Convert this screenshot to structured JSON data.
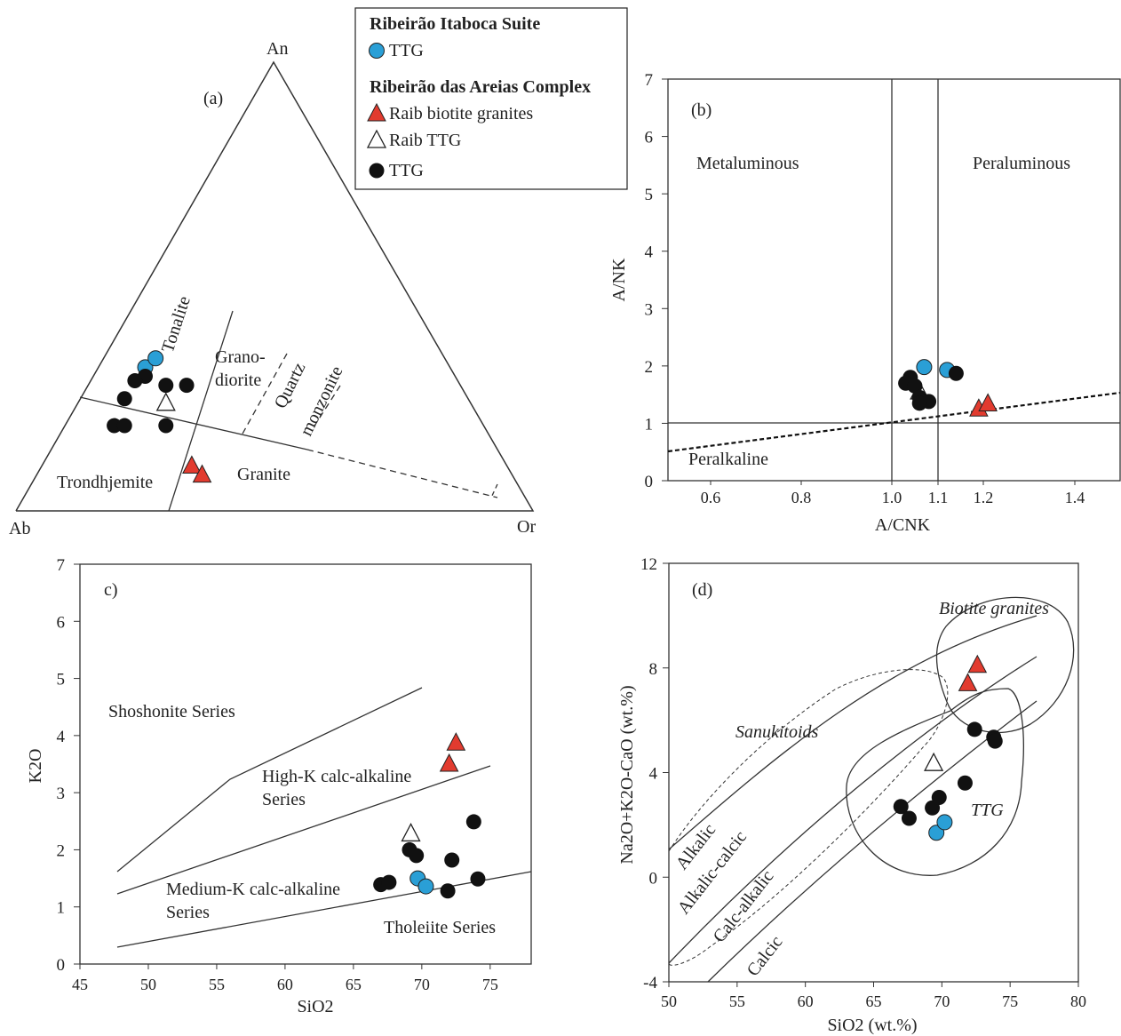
{
  "legend": {
    "group1_title": "Ribeirão Itaboca Suite",
    "group2_title": "Ribeirão das Areias Complex",
    "items": [
      {
        "label": "TTG",
        "marker": "circle",
        "color": "#2a9fd6"
      },
      {
        "label": "Raib biotite granites",
        "marker": "triangle",
        "color": "#e23b2f"
      },
      {
        "label": "Raib TTG",
        "marker": "triangle-open",
        "color": "#ffffff"
      },
      {
        "label": "TTG",
        "marker": "circle",
        "color": "#111111"
      }
    ]
  },
  "colors": {
    "blue": "#2a9fd6",
    "red": "#e23b2f",
    "black": "#111111",
    "line": "#333333"
  },
  "chart_data": [
    {
      "type": "scatter",
      "panel": "(a)",
      "title": "(a)",
      "vertices": {
        "top": "An",
        "left": "Ab",
        "right": "Or"
      },
      "field_labels": [
        "Tonalite",
        "Grano-",
        "diorite",
        "Quartz",
        "monzonite",
        "Trondhjemite",
        "Granite"
      ],
      "series": [
        {
          "name": "Ribeirão Itaboca Suite TTG",
          "marker": "circle-blue",
          "points": [
            [
              0.25,
              0.68
            ],
            [
              0.27,
              0.66
            ]
          ]
        },
        {
          "name": "Raib biotite granites",
          "marker": "triangle-red",
          "points": [
            [
              0.34,
              0.9
            ],
            [
              0.36,
              0.92
            ]
          ]
        },
        {
          "name": "Raib TTG",
          "marker": "triangle-open",
          "points": [
            [
              0.29,
              0.76
            ]
          ]
        },
        {
          "name": "TTG",
          "marker": "circle-black",
          "points": [
            [
              0.25,
              0.7
            ],
            [
              0.23,
              0.71
            ],
            [
              0.29,
              0.72
            ],
            [
              0.33,
              0.72
            ],
            [
              0.21,
              0.75
            ],
            [
              0.19,
              0.81
            ],
            [
              0.21,
              0.81
            ],
            [
              0.29,
              0.81
            ]
          ]
        }
      ]
    },
    {
      "type": "scatter",
      "panel": "(b)",
      "title": "(b)",
      "xlabel": "A/CNK",
      "ylabel": "A/NK",
      "xlim": [
        0.5,
        1.5
      ],
      "ylim": [
        0,
        7
      ],
      "x_ticks": [
        "0.6",
        "0.8",
        "1.0",
        "1.1",
        "1.2",
        "1.4"
      ],
      "x_tick_values": [
        0.6,
        0.8,
        1.0,
        1.1,
        1.2,
        1.4
      ],
      "y_ticks": [
        "0",
        "1",
        "2",
        "3",
        "4",
        "5",
        "6",
        "7"
      ],
      "field_labels": [
        "Metaluminous",
        "Peraluminous",
        "Peralkaline"
      ],
      "series": [
        {
          "name": "Ribeirão Itaboca Suite TTG",
          "marker": "circle-blue",
          "points": [
            [
              1.07,
              1.98
            ],
            [
              1.12,
              1.93
            ]
          ]
        },
        {
          "name": "Raib biotite granites",
          "marker": "triangle-red",
          "points": [
            [
              1.19,
              1.25
            ],
            [
              1.21,
              1.34
            ]
          ]
        },
        {
          "name": "Raib TTG",
          "marker": "triangle-open",
          "points": [
            [
              1.06,
              1.55
            ]
          ]
        },
        {
          "name": "TTG",
          "marker": "circle-black",
          "points": [
            [
              1.04,
              1.8
            ],
            [
              1.03,
              1.7
            ],
            [
              1.05,
              1.65
            ],
            [
              1.06,
              1.45
            ],
            [
              1.08,
              1.38
            ],
            [
              1.06,
              1.35
            ],
            [
              1.14,
              1.87
            ]
          ]
        }
      ]
    },
    {
      "type": "scatter",
      "panel": "c)",
      "title": "c)",
      "xlabel": "SiO2",
      "ylabel": "K2O",
      "xlim": [
        45,
        78
      ],
      "ylim": [
        0,
        7
      ],
      "x_ticks": [
        "45",
        "50",
        "55",
        "60",
        "65",
        "70",
        "75"
      ],
      "y_ticks": [
        "0",
        "1",
        "2",
        "3",
        "4",
        "5",
        "6",
        "7"
      ],
      "field_labels": [
        "Shoshonite Series",
        "High-K calc-alkaline",
        "Series",
        "Medium-K calc-alkaline",
        "Series",
        "Tholeiite Series"
      ],
      "series": [
        {
          "name": "Ribeirão Itaboca Suite TTG",
          "marker": "circle-blue",
          "points": [
            [
              69.7,
              1.5
            ],
            [
              70.3,
              1.36
            ]
          ]
        },
        {
          "name": "Raib biotite granites",
          "marker": "triangle-red",
          "points": [
            [
              72.5,
              3.87
            ],
            [
              72.0,
              3.5
            ]
          ]
        },
        {
          "name": "Raib TTG",
          "marker": "triangle-open",
          "points": [
            [
              69.2,
              2.28
            ]
          ]
        },
        {
          "name": "TTG",
          "marker": "circle-black",
          "points": [
            [
              67.0,
              1.39
            ],
            [
              67.6,
              1.43
            ],
            [
              69.1,
              2.0
            ],
            [
              69.6,
              1.9
            ],
            [
              71.9,
              1.28
            ],
            [
              72.2,
              1.82
            ],
            [
              73.8,
              2.49
            ],
            [
              74.1,
              1.49
            ]
          ]
        }
      ]
    },
    {
      "type": "scatter",
      "panel": "(d)",
      "title": "(d)",
      "xlabel": "SiO2 (wt.%)",
      "ylabel": "Na2O+K2O-CaO (wt.%)",
      "xlim": [
        50,
        80
      ],
      "ylim": [
        -4,
        12
      ],
      "x_ticks": [
        "50",
        "55",
        "60",
        "65",
        "70",
        "75",
        "80"
      ],
      "y_ticks": [
        "-4",
        "0",
        "4",
        "8",
        "12"
      ],
      "field_labels": [
        "Biotite granites",
        "Sanukitoids",
        "TTG",
        "Alkalic",
        "Alkalic-calcic",
        "Calc-alkalic",
        "Calcic"
      ],
      "series": [
        {
          "name": "Ribeirão Itaboca Suite TTG",
          "marker": "circle-blue",
          "points": [
            [
              69.6,
              1.7
            ],
            [
              70.2,
              2.1
            ]
          ]
        },
        {
          "name": "Raib biotite granites",
          "marker": "triangle-red",
          "points": [
            [
              72.6,
              8.1
            ],
            [
              71.9,
              7.4
            ]
          ]
        },
        {
          "name": "Raib TTG",
          "marker": "triangle-open",
          "points": [
            [
              69.4,
              4.35
            ]
          ]
        },
        {
          "name": "TTG",
          "marker": "circle-black",
          "points": [
            [
              67.0,
              2.7
            ],
            [
              67.6,
              2.25
            ],
            [
              69.3,
              2.65
            ],
            [
              69.8,
              3.05
            ],
            [
              71.7,
              3.6
            ],
            [
              72.4,
              5.65
            ],
            [
              73.8,
              5.35
            ],
            [
              73.9,
              5.2
            ]
          ]
        }
      ]
    }
  ]
}
